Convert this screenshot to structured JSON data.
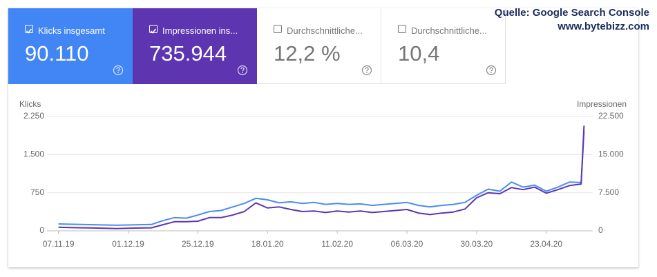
{
  "source": {
    "line1": "Quelle: Google Search Console",
    "line2": "www.bytebizz.com"
  },
  "cards": [
    {
      "label": "Klicks insgesamt",
      "value": "90.110",
      "checked": true,
      "color": "#4285f4"
    },
    {
      "label": "Impressionen ins...",
      "value": "735.944",
      "checked": true,
      "color": "#5e35b1"
    },
    {
      "label": "Durchschnittliche...",
      "value": "12,2 %",
      "checked": false,
      "color": "#ffffff"
    },
    {
      "label": "Durchschnittliche...",
      "value": "10,4",
      "checked": false,
      "color": "#ffffff"
    }
  ],
  "chart_data": {
    "type": "line",
    "ylabel": "Klicks",
    "y2label": "Impressionen",
    "x": [
      "2019-11-07",
      "2019-11-11",
      "2019-11-15",
      "2019-11-19",
      "2019-11-23",
      "2019-11-27",
      "2019-12-01",
      "2019-12-05",
      "2019-12-09",
      "2019-12-13",
      "2019-12-17",
      "2019-12-21",
      "2019-12-25",
      "2019-12-29",
      "2020-01-02",
      "2020-01-06",
      "2020-01-10",
      "2020-01-14",
      "2020-01-18",
      "2020-01-22",
      "2020-01-26",
      "2020-01-30",
      "2020-02-03",
      "2020-02-07",
      "2020-02-11",
      "2020-02-15",
      "2020-02-19",
      "2020-02-23",
      "2020-02-27",
      "2020-03-02",
      "2020-03-06",
      "2020-03-10",
      "2020-03-14",
      "2020-03-18",
      "2020-03-22",
      "2020-03-26",
      "2020-03-30",
      "2020-04-03",
      "2020-04-07",
      "2020-04-11",
      "2020-04-15",
      "2020-04-19",
      "2020-04-23",
      "2020-04-27",
      "2020-05-01",
      "2020-05-05",
      "2020-05-06"
    ],
    "xlim": [
      "2019-11-04",
      "2020-05-09"
    ],
    "xticks": [
      {
        "value": "2019-11-07",
        "label": "07.11.19"
      },
      {
        "value": "2019-12-01",
        "label": "01.12.19"
      },
      {
        "value": "2019-12-25",
        "label": "25.12.19"
      },
      {
        "value": "2020-01-18",
        "label": "18.01.20"
      },
      {
        "value": "2020-02-11",
        "label": "11.02.20"
      },
      {
        "value": "2020-03-06",
        "label": "06.03.20"
      },
      {
        "value": "2020-03-30",
        "label": "30.03.20"
      },
      {
        "value": "2020-04-23",
        "label": "23.04.20"
      }
    ],
    "ylim": [
      0,
      2250
    ],
    "yticks": [
      0,
      750,
      {
        "value": 1500,
        "label": "1.500"
      },
      {
        "value": 2250,
        "label": "2.250"
      }
    ],
    "y2lim": [
      0,
      22500
    ],
    "y2ticks": [
      0,
      {
        "value": 7500,
        "label": "7.500"
      },
      {
        "value": 15000,
        "label": "15.000"
      },
      {
        "value": 22500,
        "label": "22.500"
      }
    ],
    "grid": true,
    "series": [
      {
        "name": "Klicks",
        "color": "#4a8cf0",
        "values": [
          135,
          130,
          125,
          120,
          115,
          110,
          115,
          120,
          125,
          200,
          260,
          250,
          310,
          380,
          400,
          470,
          540,
          640,
          610,
          550,
          570,
          540,
          560,
          520,
          540,
          520,
          530,
          500,
          520,
          540,
          560,
          500,
          470,
          500,
          520,
          560,
          700,
          820,
          780,
          960,
          860,
          900,
          780,
          860,
          960,
          950,
          1960
        ]
      },
      {
        "name": "Impressionen",
        "color": "#5e35b1",
        "axis": "y2",
        "values": [
          700,
          650,
          600,
          550,
          500,
          450,
          500,
          550,
          600,
          1200,
          1800,
          1800,
          1900,
          2600,
          2600,
          3100,
          3800,
          5500,
          4500,
          4700,
          4200,
          3800,
          3900,
          3600,
          3900,
          3700,
          3900,
          3600,
          3800,
          4000,
          4200,
          3500,
          3200,
          3500,
          3700,
          4300,
          6500,
          7500,
          7300,
          8500,
          8100,
          8600,
          7400,
          8100,
          8900,
          9200,
          20700
        ]
      }
    ]
  }
}
